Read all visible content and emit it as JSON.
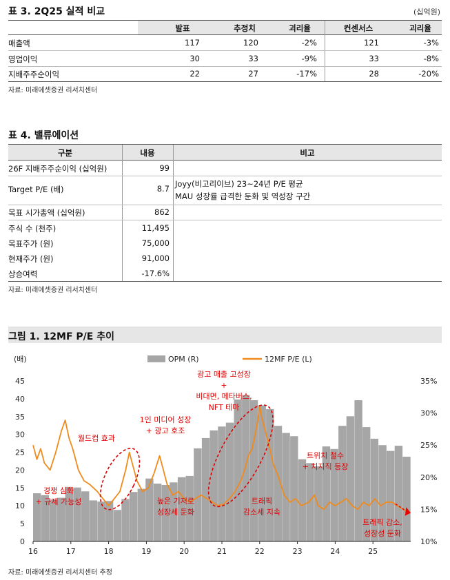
{
  "table3": {
    "title": "표 3. 2Q25 실적 비교",
    "unit": "(십억원)",
    "headers": [
      "",
      "발표",
      "추정치",
      "괴리율",
      "컨센서스",
      "괴리율"
    ],
    "rows": [
      [
        "매출액",
        "117",
        "120",
        "-2%",
        "121",
        "-3%"
      ],
      [
        "영업이익",
        "30",
        "33",
        "-9%",
        "33",
        "-8%"
      ],
      [
        "지배주주순이익",
        "22",
        "27",
        "-17%",
        "28",
        "-20%"
      ]
    ],
    "source": "자료: 미래에셋증권 리서치센터"
  },
  "table4": {
    "title": "표 4. 밸류에이션",
    "headers": [
      "구분",
      "내용",
      "비고"
    ],
    "rows": [
      {
        "label": "26F 지배주주순이익 (십억원)",
        "value": "99",
        "note1": "",
        "note2": ""
      },
      {
        "label": "Target P/E (배)",
        "value": "8.7",
        "note1": "Joyy(비고리이브) 23~24년 P/E 평균",
        "note2": "MAU 성장률 급격한 둔화 및 역성장 구간"
      },
      {
        "label": "목표 시가총액 (십억원)",
        "value": "862",
        "note1": "",
        "note2": ""
      },
      {
        "label": "주식 수 (천주)",
        "value": "11,495",
        "note1": "",
        "note2": ""
      },
      {
        "label": "목표주가 (원)",
        "value": "75,000",
        "note1": "",
        "note2": ""
      },
      {
        "label": "현재주가 (원)",
        "value": "91,000",
        "note1": "",
        "note2": ""
      },
      {
        "label": "상승여력",
        "value": "-17.6%",
        "note1": "",
        "note2": ""
      }
    ],
    "source": "자료: 미래에셋증권 리서치센터"
  },
  "figure1": {
    "title": "그림 1. 12MF P/E 추이",
    "source": "자료: 미래에셋증권 리서치센터 추정",
    "annotations": [
      {
        "id": "ann1",
        "lines": [
          "경쟁 심화",
          "+ 규제 가능성"
        ]
      },
      {
        "id": "ann2",
        "lines": [
          "월드컵 효과"
        ]
      },
      {
        "id": "ann3",
        "lines": [
          "1인 미디어 성장",
          "+ 광고 호조"
        ]
      },
      {
        "id": "ann4",
        "lines": [
          "높은 기저로",
          "성장세 둔화"
        ]
      },
      {
        "id": "ann5",
        "lines": [
          "광고 매출 고성장",
          "+",
          "비대면, 메타버스,",
          "NFT 테마"
        ]
      },
      {
        "id": "ann6",
        "lines": [
          "트래픽",
          "감소세 지속"
        ]
      },
      {
        "id": "ann7",
        "lines": [
          "트위치 철수",
          "+ 치지직 등장"
        ]
      },
      {
        "id": "ann8",
        "lines": [
          "트래픽 감소,",
          "성장성 둔화"
        ]
      }
    ]
  },
  "chart_data": {
    "type": "bar+line",
    "ylabel_left": "(배)",
    "legend": [
      "OPM (R)",
      "12MF P/E (L)"
    ],
    "legend_position": "top-center",
    "x_ticks": [
      "16",
      "17",
      "18",
      "19",
      "20",
      "21",
      "22",
      "23",
      "24",
      "25"
    ],
    "y_left": {
      "ticks": [
        "45",
        "40",
        "35",
        "30",
        "25",
        "20",
        "15",
        "10",
        "5",
        "0"
      ],
      "range": [
        0,
        45
      ]
    },
    "y_right": {
      "ticks": [
        "35%",
        "30%",
        "25%",
        "20%",
        "15%",
        "10%"
      ],
      "range": [
        10,
        35
      ]
    },
    "opm_series": {
      "name": "OPM (R)",
      "color": "#a6a6a6",
      "values": [
        17.5,
        17.2,
        16.5,
        16.8,
        18.5,
        18.4,
        17.8,
        16.4,
        16.2,
        16.3,
        14.9,
        16.6,
        17.7,
        18.2,
        19.8,
        19.0,
        18.8,
        19.2,
        20.0,
        20.2,
        24.5,
        26.1,
        27.3,
        27.9,
        28.5,
        32.1,
        32.8,
        32.0,
        31.2,
        30.6,
        28.0,
        26.9,
        26.4,
        22.8,
        22.2,
        21.7,
        24.8,
        24.4,
        28.0,
        29.5,
        32.0,
        27.8,
        26.0,
        25.0,
        24.1,
        24.9,
        23.2
      ]
    },
    "pe_series": {
      "name": "12MF P/E (L)",
      "color": "#f08a1c",
      "points": [
        [
          16.0,
          27
        ],
        [
          16.1,
          23
        ],
        [
          16.2,
          26
        ],
        [
          16.3,
          22
        ],
        [
          16.45,
          20
        ],
        [
          16.6,
          25
        ],
        [
          16.75,
          31
        ],
        [
          16.85,
          34
        ],
        [
          16.95,
          29
        ],
        [
          17.05,
          26
        ],
        [
          17.2,
          20
        ],
        [
          17.35,
          17
        ],
        [
          17.5,
          16
        ],
        [
          17.7,
          14
        ],
        [
          17.85,
          12
        ],
        [
          18.0,
          10
        ],
        [
          18.15,
          12
        ],
        [
          18.3,
          14
        ],
        [
          18.45,
          20
        ],
        [
          18.55,
          25
        ],
        [
          18.65,
          21
        ],
        [
          18.75,
          17
        ],
        [
          18.9,
          14
        ],
        [
          19.05,
          15
        ],
        [
          19.2,
          19
        ],
        [
          19.35,
          24
        ],
        [
          19.45,
          20
        ],
        [
          19.55,
          16
        ],
        [
          19.7,
          13
        ],
        [
          19.85,
          14
        ],
        [
          20.0,
          12
        ],
        [
          20.15,
          11
        ],
        [
          20.3,
          12
        ],
        [
          20.45,
          13
        ],
        [
          20.6,
          12
        ],
        [
          20.75,
          11
        ],
        [
          20.9,
          10
        ],
        [
          21.05,
          10.5
        ],
        [
          21.2,
          12
        ],
        [
          21.35,
          14
        ],
        [
          21.5,
          17
        ],
        [
          21.6,
          20
        ],
        [
          21.7,
          24
        ],
        [
          21.8,
          26
        ],
        [
          21.9,
          31
        ],
        [
          21.95,
          34
        ],
        [
          22.0,
          38
        ],
        [
          22.05,
          35
        ],
        [
          22.15,
          31
        ],
        [
          22.25,
          27
        ],
        [
          22.35,
          22
        ],
        [
          22.5,
          18
        ],
        [
          22.65,
          13
        ],
        [
          22.8,
          11
        ],
        [
          22.95,
          12
        ],
        [
          23.1,
          10
        ],
        [
          23.3,
          11
        ],
        [
          23.45,
          13
        ],
        [
          23.55,
          10
        ],
        [
          23.7,
          9
        ],
        [
          23.85,
          11
        ],
        [
          24.0,
          10
        ],
        [
          24.15,
          11
        ],
        [
          24.3,
          12
        ],
        [
          24.45,
          10
        ],
        [
          24.6,
          9
        ],
        [
          24.75,
          11
        ],
        [
          24.9,
          10
        ],
        [
          25.05,
          12
        ],
        [
          25.2,
          10
        ],
        [
          25.35,
          11
        ],
        [
          25.5,
          11
        ],
        [
          25.65,
          10
        ],
        [
          25.8,
          9
        ],
        [
          25.95,
          8
        ]
      ]
    }
  }
}
